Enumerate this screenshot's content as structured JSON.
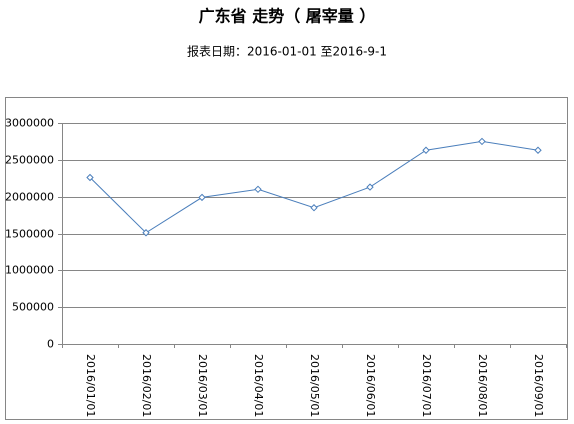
{
  "chart_data": {
    "type": "line",
    "title": "广东省 走势（ 屠宰量 ）",
    "subtitle": "报表日期：2016-01-01 至2016-9-1",
    "categories": [
      "2016/01/01",
      "2016/02/01",
      "2016/03/01",
      "2016/04/01",
      "2016/05/01",
      "2016/06/01",
      "2016/07/01",
      "2016/08/01",
      "2016/09/01"
    ],
    "values": [
      2260000,
      1510000,
      1990000,
      2100000,
      1850000,
      2130000,
      2630000,
      2750000,
      2630000
    ],
    "color": "#4a7ebb",
    "ylim": [
      0,
      3000000
    ],
    "yticks": [
      0,
      500000,
      1000000,
      1500000,
      2000000,
      2500000,
      3000000
    ],
    "grid": true
  }
}
